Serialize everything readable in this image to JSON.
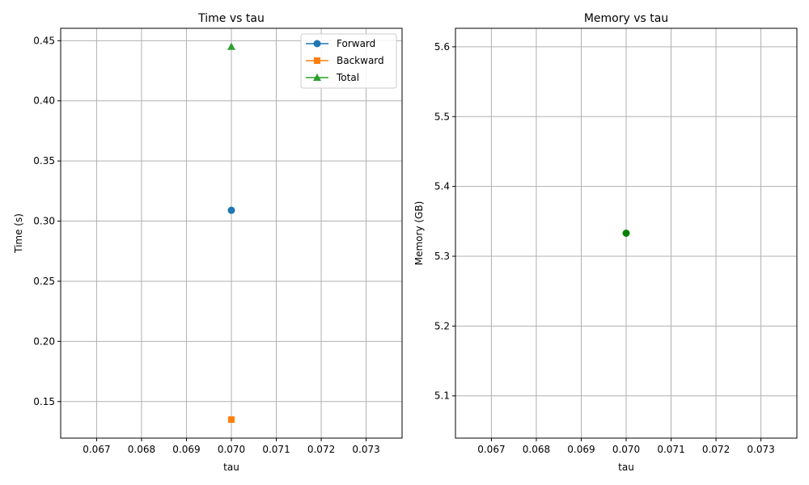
{
  "chart_data": [
    {
      "type": "line",
      "title": "Time vs tau",
      "xlabel": "tau",
      "ylabel": "Time (s)",
      "xlim": [
        0.0662,
        0.0738
      ],
      "ylim": [
        0.1196,
        0.4603
      ],
      "xticks": [
        0.067,
        0.068,
        0.069,
        0.07,
        0.071,
        0.072,
        0.073
      ],
      "xtick_labels": [
        "0.067",
        "0.068",
        "0.069",
        "0.070",
        "0.071",
        "0.072",
        "0.073"
      ],
      "yticks": [
        0.15,
        0.2,
        0.25,
        0.3,
        0.35,
        0.4,
        0.45
      ],
      "ytick_labels": [
        "0.15",
        "0.20",
        "0.25",
        "0.30",
        "0.35",
        "0.40",
        "0.45"
      ],
      "grid": true,
      "legend": "upper-right",
      "series": [
        {
          "name": "Forward",
          "marker": "circle",
          "color": "#1f77b4",
          "x": [
            0.07
          ],
          "y": [
            0.309
          ]
        },
        {
          "name": "Backward",
          "marker": "square",
          "color": "#ff7f0e",
          "x": [
            0.07
          ],
          "y": [
            0.135
          ]
        },
        {
          "name": "Total",
          "marker": "triangle",
          "color": "#2ca02c",
          "x": [
            0.07
          ],
          "y": [
            0.445
          ]
        }
      ]
    },
    {
      "type": "scatter",
      "title": "Memory vs tau",
      "xlabel": "tau",
      "ylabel": "Memory (GB)",
      "xlim": [
        0.0662,
        0.0738
      ],
      "ylim": [
        5.0395,
        5.6265
      ],
      "xticks": [
        0.067,
        0.068,
        0.069,
        0.07,
        0.071,
        0.072,
        0.073
      ],
      "xtick_labels": [
        "0.067",
        "0.068",
        "0.069",
        "0.070",
        "0.071",
        "0.072",
        "0.073"
      ],
      "yticks": [
        5.1,
        5.2,
        5.3,
        5.4,
        5.5,
        5.6
      ],
      "ytick_labels": [
        "5.1",
        "5.2",
        "5.3",
        "5.4",
        "5.5",
        "5.6"
      ],
      "grid": true,
      "series": [
        {
          "marker": "circle",
          "color": "#008000",
          "x": [
            0.07
          ],
          "y": [
            5.333
          ]
        }
      ]
    }
  ]
}
